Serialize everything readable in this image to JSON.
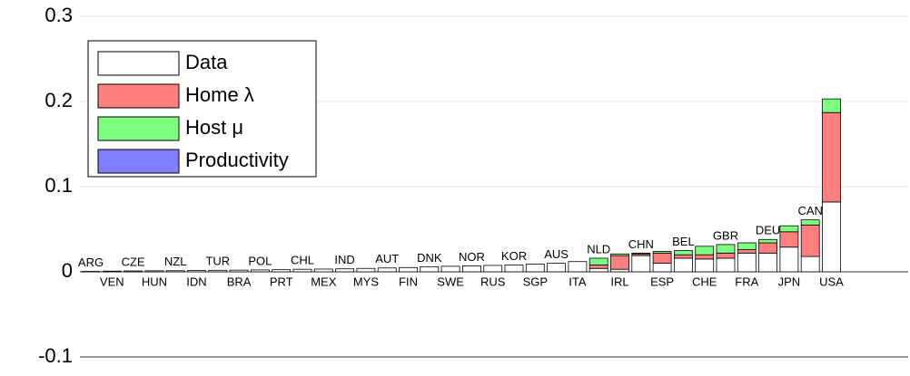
{
  "chart_data": {
    "type": "stacked_bar",
    "categories": [
      "ARG",
      "VEN",
      "CZE",
      "HUN",
      "NZL",
      "IDN",
      "TUR",
      "BRA",
      "POL",
      "PRT",
      "CHL",
      "MEX",
      "IND",
      "MYS",
      "AUT",
      "FIN",
      "DNK",
      "SWE",
      "NOR",
      "RUS",
      "KOR",
      "SGP",
      "AUS",
      "ITA",
      "NLD",
      "IRL",
      "CHN",
      "ESP",
      "BEL",
      "CHE",
      "GBR",
      "FRA",
      "DEU",
      "JPN",
      "CAN",
      "USA"
    ],
    "series": [
      {
        "name": "Data",
        "color": "#ffffff",
        "values": [
          0.0005,
          0.0008,
          0.001,
          0.0012,
          0.0013,
          0.0015,
          0.0018,
          0.002,
          0.0022,
          0.0025,
          0.003,
          0.0032,
          0.0035,
          0.004,
          0.0045,
          0.005,
          0.006,
          0.0065,
          0.007,
          0.0075,
          0.008,
          0.009,
          0.01,
          0.012,
          0.004,
          0.003,
          0.019,
          0.01,
          0.016,
          0.015,
          0.016,
          0.022,
          0.022,
          0.029,
          0.018,
          0.082
        ]
      },
      {
        "name": "Home λ",
        "color": "#ff7f7f",
        "values": [
          0,
          0,
          0,
          0,
          0,
          0,
          0,
          0,
          0,
          0,
          0,
          0,
          0,
          0,
          0,
          0,
          0,
          0,
          0,
          0,
          0,
          0,
          0,
          0,
          0.004,
          0.016,
          0.002,
          0.012,
          0.004,
          0.005,
          0.006,
          0.004,
          0.012,
          0.018,
          0.037,
          0.105
        ]
      },
      {
        "name": "Host μ",
        "color": "#7fff7f",
        "values": [
          0,
          0,
          0,
          0,
          0,
          0,
          0,
          0,
          0,
          0,
          0,
          0,
          0,
          0,
          0,
          0,
          0,
          0,
          0,
          0,
          0,
          0,
          0,
          0,
          0.008,
          0.002,
          0.001,
          0.002,
          0.005,
          0.01,
          0.01,
          0.008,
          0.004,
          0.007,
          0.006,
          0.016
        ]
      },
      {
        "name": "Productivity",
        "color": "#7f7fff",
        "values": [
          0,
          0,
          0,
          0,
          0,
          0,
          0,
          0,
          0,
          0,
          0,
          0,
          0,
          0,
          0,
          0,
          0,
          0,
          0,
          0,
          0,
          0,
          0,
          0,
          0,
          0,
          0,
          0,
          0,
          0,
          0,
          0,
          0,
          0,
          0,
          0
        ]
      }
    ],
    "ylim": [
      -0.1,
      0.3
    ],
    "yticks": [
      -0.1,
      0,
      0.1,
      0.2,
      0.3
    ],
    "grid": true,
    "legend": "upper left"
  }
}
